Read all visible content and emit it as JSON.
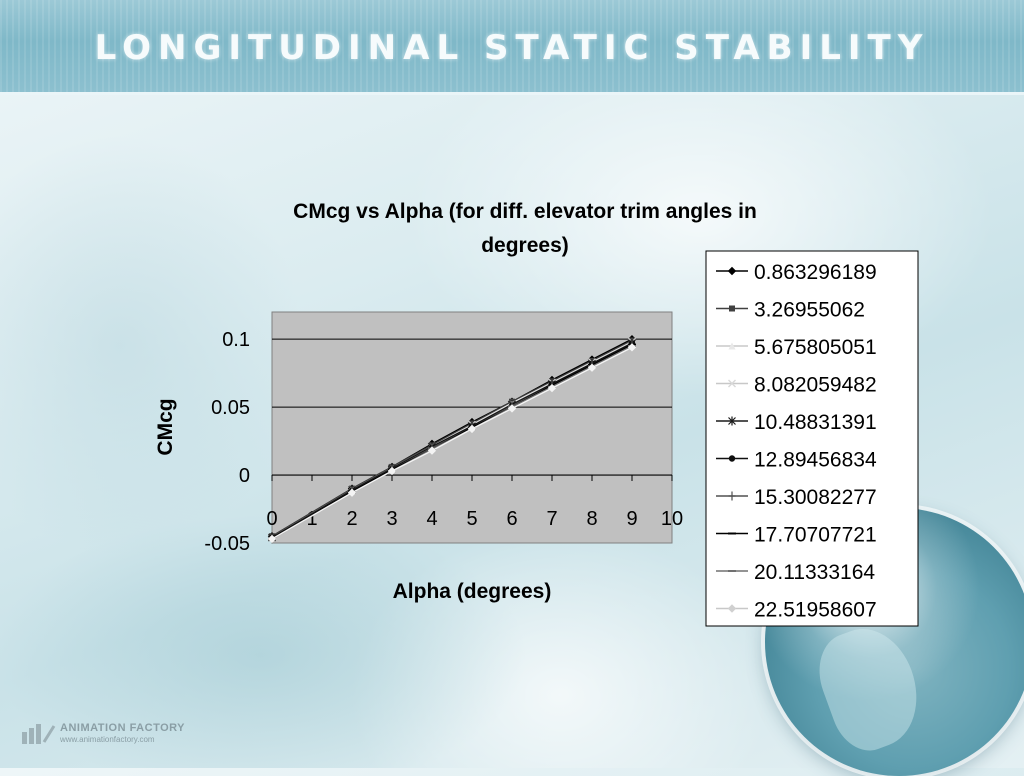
{
  "slide": {
    "title": "LONGITUDINAL STATIC STABILITY",
    "logo_name": "ANIMATION FACTORY",
    "logo_url": "www.animationfactory.com"
  },
  "colors": {
    "banner": "#86bccb",
    "plot_area": "#c0c0c0",
    "gridline": "#000000"
  },
  "chart_data": {
    "type": "line",
    "title": "CMcg vs Alpha (for diff. elevator trim angles in degrees)",
    "title_lines": [
      "CMcg vs Alpha (for diff. elevator trim angles in",
      "degrees)"
    ],
    "xlabel": "Alpha (degrees)",
    "ylabel": "CMcg",
    "xlim": [
      0,
      10
    ],
    "ylim": [
      -0.05,
      0.12
    ],
    "x_ticks": [
      "0",
      "1",
      "2",
      "3",
      "4",
      "5",
      "6",
      "7",
      "8",
      "9",
      "10"
    ],
    "y_ticks": [
      "0.1",
      "0.05",
      "0",
      "-0.05"
    ],
    "y_tick_values": [
      0.1,
      0.05,
      0,
      -0.05
    ],
    "grid": "horizontal major gridlines",
    "legend_position": "right",
    "x": [
      0,
      2,
      3,
      4,
      5,
      6,
      7,
      8,
      9
    ],
    "series": [
      {
        "name": "0.863296189",
        "marker": "diamond",
        "color": "#000000",
        "values": [
          -0.045,
          -0.01,
          0.006,
          0.023,
          0.039,
          0.054,
          0.07,
          0.085,
          0.1
        ]
      },
      {
        "name": "3.26955062",
        "marker": "square",
        "color": "#404040",
        "values": [
          -0.045,
          -0.01,
          0.006,
          0.022,
          0.038,
          0.054,
          0.069,
          0.084,
          0.099
        ]
      },
      {
        "name": "5.675805051",
        "marker": "triangle",
        "color": "#e8e8e8",
        "values": [
          -0.046,
          -0.011,
          0.005,
          0.021,
          0.037,
          0.053,
          0.068,
          0.083,
          0.098
        ]
      },
      {
        "name": "8.082059482",
        "marker": "x",
        "color": "#d8d8d8",
        "values": [
          -0.046,
          -0.011,
          0.005,
          0.021,
          0.037,
          0.052,
          0.068,
          0.083,
          0.098
        ]
      },
      {
        "name": "10.48831391",
        "marker": "star",
        "color": "#1a1a1a",
        "values": [
          -0.046,
          -0.011,
          0.005,
          0.021,
          0.036,
          0.052,
          0.067,
          0.082,
          0.097
        ]
      },
      {
        "name": "12.89456834",
        "marker": "circle",
        "color": "#101010",
        "values": [
          -0.046,
          -0.012,
          0.004,
          0.02,
          0.036,
          0.051,
          0.067,
          0.082,
          0.097
        ]
      },
      {
        "name": "15.30082277",
        "marker": "plus",
        "color": "#505050",
        "values": [
          -0.047,
          -0.012,
          0.004,
          0.02,
          0.035,
          0.051,
          0.066,
          0.081,
          0.096
        ]
      },
      {
        "name": "17.70707721",
        "marker": "dash",
        "color": "#000000",
        "values": [
          -0.047,
          -0.012,
          0.004,
          0.019,
          0.035,
          0.05,
          0.066,
          0.081,
          0.096
        ]
      },
      {
        "name": "20.11333164",
        "marker": "dash",
        "color": "#707070",
        "values": [
          -0.047,
          -0.013,
          0.003,
          0.019,
          0.034,
          0.05,
          0.065,
          0.08,
          0.095
        ]
      },
      {
        "name": "22.51958607",
        "marker": "diamond",
        "color": "#f4f4f4",
        "values": [
          -0.047,
          -0.013,
          0.003,
          0.018,
          0.034,
          0.049,
          0.064,
          0.079,
          0.094
        ]
      }
    ]
  }
}
